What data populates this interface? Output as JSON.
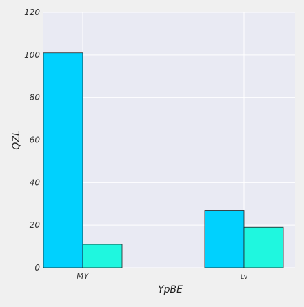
{
  "chart_data": {
    "type": "bar",
    "title": "",
    "xlabel": "YpBE",
    "ylabel": "QZL",
    "categories": [
      "MY",
      "Lv"
    ],
    "series": [
      {
        "values": [
          101,
          11
        ]
      },
      {
        "values": [
          27,
          19
        ]
      }
    ],
    "ylim": [
      0,
      120
    ],
    "yticks": [
      0,
      20,
      40,
      60,
      80,
      100,
      120
    ],
    "grid": true,
    "legend": "none",
    "colors": {
      "plot_bg": "#e9eaf3",
      "page_bg": "#f0f0f0",
      "grid": "#ffffff",
      "bar_primary": "#00d1fe",
      "bar_secondary": "#1ff7df",
      "bar_edge": "#222222"
    }
  }
}
